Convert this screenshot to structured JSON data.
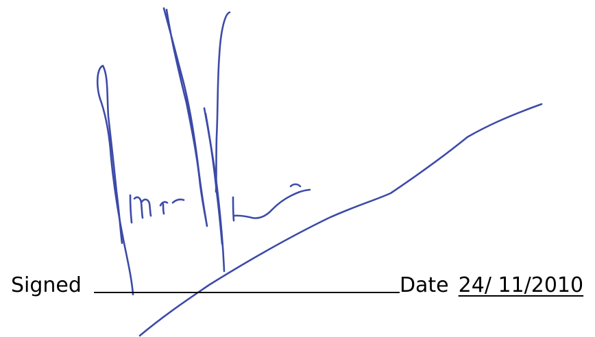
{
  "form": {
    "signed_label": "Signed",
    "date_label": "Date",
    "date_value": "24/ 11/2010"
  },
  "colors": {
    "ink": "#3c4aa8",
    "text": "#000000"
  }
}
